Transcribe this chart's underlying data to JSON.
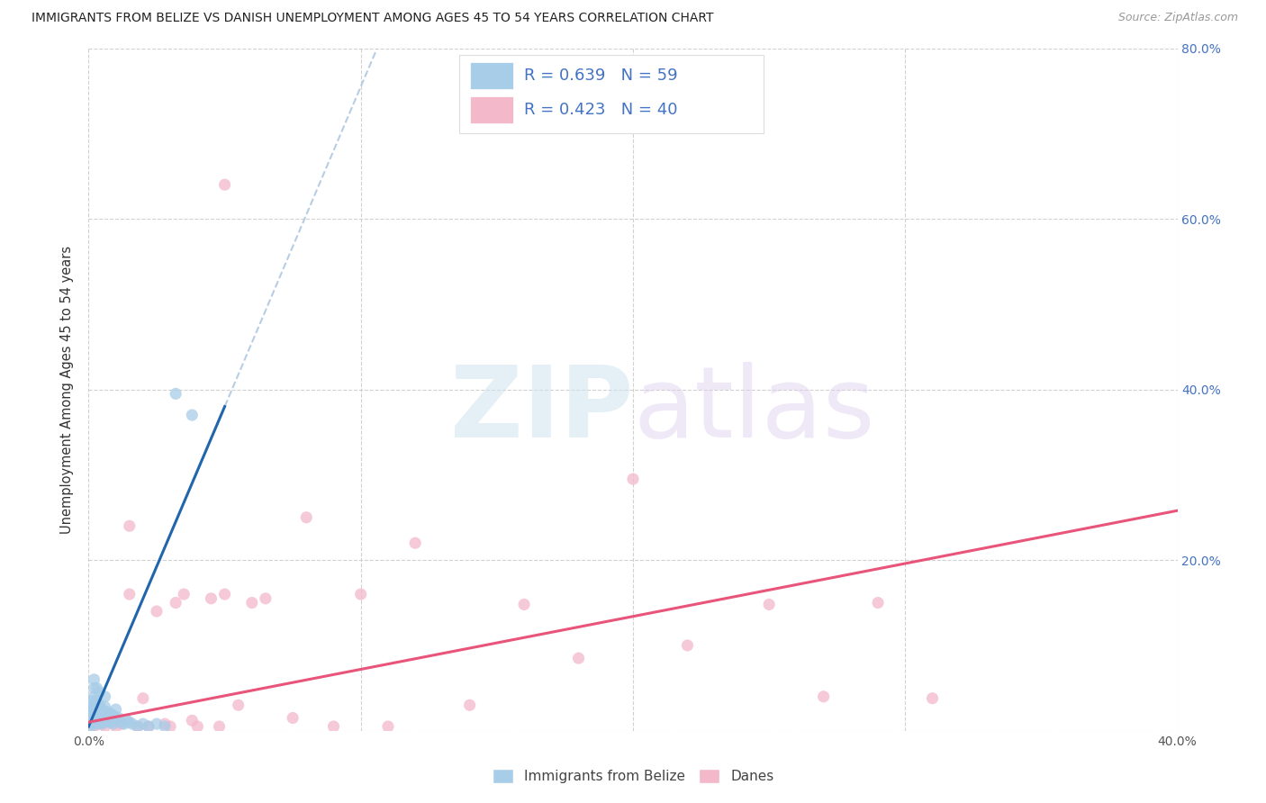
{
  "title": "IMMIGRANTS FROM BELIZE VS DANISH UNEMPLOYMENT AMONG AGES 45 TO 54 YEARS CORRELATION CHART",
  "source": "Source: ZipAtlas.com",
  "ylabel": "Unemployment Among Ages 45 to 54 years",
  "xlim": [
    0.0,
    0.4
  ],
  "ylim": [
    0.0,
    0.8
  ],
  "blue_color": "#a8cde8",
  "pink_color": "#f4b8cb",
  "blue_line_color": "#2166ac",
  "pink_line_color": "#e8547a",
  "dash_color": "#b0c8e0",
  "right_tick_color": "#4472c4",
  "grid_color": "#cccccc",
  "R_blue": 0.639,
  "N_blue": 59,
  "R_pink": 0.423,
  "N_pink": 40,
  "legend_label_blue": "Immigrants from Belize",
  "legend_label_pink": "Danes",
  "blue_x": [
    0.001,
    0.001,
    0.001,
    0.001,
    0.001,
    0.001,
    0.001,
    0.001,
    0.001,
    0.001,
    0.001,
    0.001,
    0.002,
    0.002,
    0.002,
    0.002,
    0.002,
    0.002,
    0.002,
    0.002,
    0.003,
    0.003,
    0.003,
    0.003,
    0.003,
    0.003,
    0.004,
    0.004,
    0.004,
    0.004,
    0.004,
    0.005,
    0.005,
    0.005,
    0.006,
    0.006,
    0.006,
    0.006,
    0.007,
    0.007,
    0.008,
    0.008,
    0.009,
    0.009,
    0.01,
    0.01,
    0.011,
    0.012,
    0.013,
    0.014,
    0.015,
    0.016,
    0.018,
    0.02,
    0.022,
    0.025,
    0.028,
    0.032,
    0.038
  ],
  "blue_y": [
    0.005,
    0.008,
    0.01,
    0.012,
    0.015,
    0.018,
    0.02,
    0.022,
    0.025,
    0.028,
    0.03,
    0.035,
    0.01,
    0.015,
    0.02,
    0.025,
    0.03,
    0.04,
    0.05,
    0.06,
    0.008,
    0.012,
    0.018,
    0.025,
    0.035,
    0.05,
    0.01,
    0.015,
    0.02,
    0.03,
    0.045,
    0.008,
    0.015,
    0.025,
    0.01,
    0.018,
    0.028,
    0.04,
    0.012,
    0.022,
    0.01,
    0.02,
    0.008,
    0.018,
    0.012,
    0.025,
    0.015,
    0.01,
    0.008,
    0.012,
    0.01,
    0.008,
    0.005,
    0.008,
    0.005,
    0.008,
    0.005,
    0.395,
    0.37
  ],
  "pink_x": [
    0.002,
    0.004,
    0.006,
    0.008,
    0.01,
    0.012,
    0.015,
    0.018,
    0.02,
    0.022,
    0.025,
    0.028,
    0.03,
    0.032,
    0.035,
    0.038,
    0.04,
    0.045,
    0.048,
    0.05,
    0.055,
    0.06,
    0.065,
    0.075,
    0.08,
    0.09,
    0.1,
    0.11,
    0.12,
    0.14,
    0.16,
    0.18,
    0.2,
    0.22,
    0.25,
    0.27,
    0.29,
    0.31,
    0.05,
    0.015
  ],
  "pink_y": [
    0.005,
    0.008,
    0.005,
    0.01,
    0.005,
    0.008,
    0.16,
    0.005,
    0.038,
    0.005,
    0.14,
    0.008,
    0.005,
    0.15,
    0.16,
    0.012,
    0.005,
    0.155,
    0.005,
    0.16,
    0.03,
    0.15,
    0.155,
    0.015,
    0.25,
    0.005,
    0.16,
    0.005,
    0.22,
    0.03,
    0.148,
    0.085,
    0.295,
    0.1,
    0.148,
    0.04,
    0.15,
    0.038,
    0.64,
    0.24
  ]
}
